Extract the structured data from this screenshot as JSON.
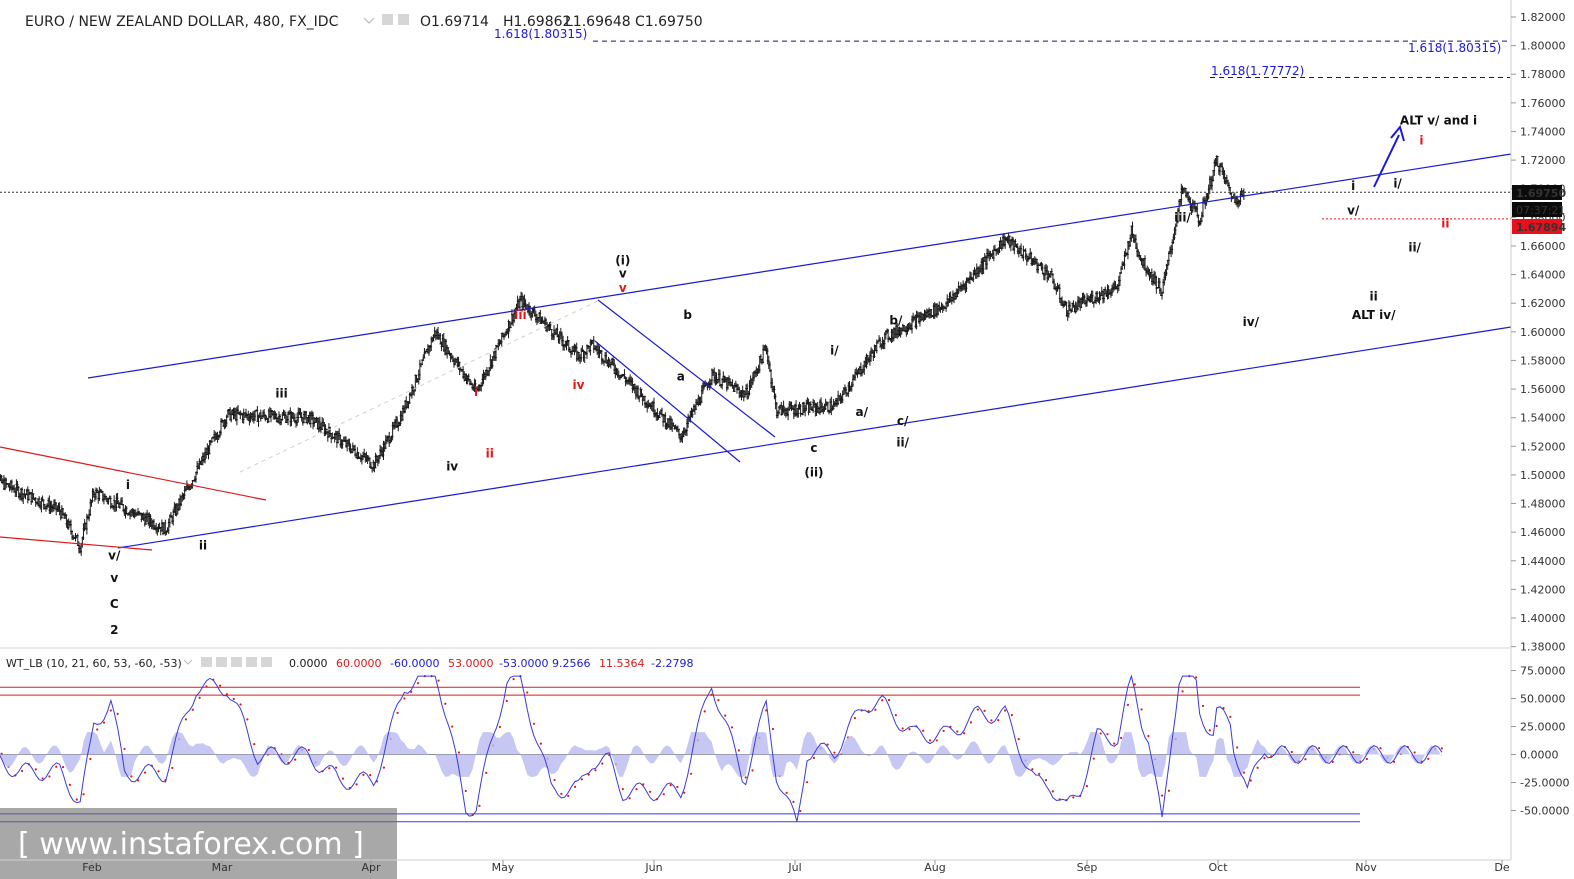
{
  "header": {
    "symbol": "EURO / NEW ZEALAND DOLLAR, 480, FX_IDC",
    "open": "O1.69714",
    "high": "H1.69862",
    "low": "L1.69648",
    "close": "C1.69750"
  },
  "price_axis": {
    "ticks": [
      "1.82000",
      "1.80000",
      "1.78000",
      "1.76000",
      "1.74000",
      "1.72000",
      "1.70000",
      "1.68000",
      "1.66000",
      "1.64000",
      "1.62000",
      "1.60000",
      "1.58000",
      "1.56000",
      "1.54000",
      "1.52000",
      "1.50000",
      "1.48000",
      "1.46000",
      "1.44000",
      "1.42000",
      "1.40000",
      "1.38000"
    ],
    "last_price": "1.69750",
    "countdown": "07:37:21",
    "support_price": "1.67894"
  },
  "time_axis": {
    "labels": [
      "Feb",
      "Mar",
      "Apr",
      "May",
      "Jun",
      "Jul",
      "Aug",
      "Sep",
      "Oct",
      "Nov",
      "De"
    ]
  },
  "fib_labels": {
    "left": "1.618(1.80315)",
    "right": "1.618(1.80315)",
    "mid": "1.618(1.77772)"
  },
  "wave_labels": [
    {
      "text": "v/",
      "price": 1.441,
      "day": 37,
      "color": "black"
    },
    {
      "text": "v",
      "price": 1.425,
      "day": 37,
      "color": "black"
    },
    {
      "text": "C",
      "price": 1.407,
      "day": 37,
      "color": "black"
    },
    {
      "text": "2",
      "price": 1.389,
      "day": 37,
      "color": "black"
    },
    {
      "text": "i",
      "price": 1.49,
      "day": 41,
      "color": "black"
    },
    {
      "text": "ii",
      "price": 1.448,
      "day": 63,
      "color": "black"
    },
    {
      "text": "iii",
      "price": 1.554,
      "day": 86,
      "color": "black"
    },
    {
      "text": "iv",
      "price": 1.503,
      "day": 136,
      "color": "black"
    },
    {
      "text": "i",
      "price": 1.555,
      "day": 143,
      "color": "red"
    },
    {
      "text": "ii",
      "price": 1.512,
      "day": 147,
      "color": "red"
    },
    {
      "text": "iii",
      "price": 1.609,
      "day": 156,
      "color": "red"
    },
    {
      "text": "iv",
      "price": 1.56,
      "day": 173,
      "color": "red"
    },
    {
      "text": "(i)",
      "price": 1.647,
      "day": 186,
      "color": "black"
    },
    {
      "text": "v",
      "price": 1.638,
      "day": 186,
      "color": "black"
    },
    {
      "text": "v",
      "price": 1.628,
      "day": 186,
      "color": "red"
    },
    {
      "text": "b",
      "price": 1.609,
      "day": 205,
      "color": "black"
    },
    {
      "text": "a",
      "price": 1.566,
      "day": 203,
      "color": "black"
    },
    {
      "text": "c",
      "price": 1.516,
      "day": 242,
      "color": "black"
    },
    {
      "text": "(ii)",
      "price": 1.499,
      "day": 242,
      "color": "black"
    },
    {
      "text": "i/",
      "price": 1.584,
      "day": 248,
      "color": "black"
    },
    {
      "text": "a/",
      "price": 1.541,
      "day": 256,
      "color": "black"
    },
    {
      "text": "b/",
      "price": 1.605,
      "day": 266,
      "color": "black"
    },
    {
      "text": "c/",
      "price": 1.535,
      "day": 268,
      "color": "black"
    },
    {
      "text": "ii/",
      "price": 1.52,
      "day": 268,
      "color": "black"
    },
    {
      "text": "iii/",
      "price": 1.677,
      "day": 350,
      "color": "black"
    },
    {
      "text": "iv/",
      "price": 1.604,
      "day": 370,
      "color": "black"
    },
    {
      "text": "i",
      "price": 1.699,
      "day": 400,
      "color": "black"
    },
    {
      "text": "v/",
      "price": 1.682,
      "day": 400,
      "color": "black"
    },
    {
      "text": "ii",
      "price": 1.622,
      "day": 406,
      "color": "black"
    },
    {
      "text": "ALT iv/",
      "price": 1.609,
      "day": 406,
      "color": "black"
    },
    {
      "text": "i/",
      "price": 1.701,
      "day": 413,
      "color": "black"
    },
    {
      "text": "ii/",
      "price": 1.656,
      "day": 418,
      "color": "black"
    },
    {
      "text": "ALT v/ and i",
      "price": 1.745,
      "day": 425,
      "color": "black"
    },
    {
      "text": "i",
      "price": 1.731,
      "day": 420,
      "color": "red"
    },
    {
      "text": "ii",
      "price": 1.673,
      "day": 427,
      "color": "red"
    }
  ],
  "indicator": {
    "title": "WT_LB (10, 21, 60, 53, -60, -53)",
    "values": [
      {
        "text": "0.0000",
        "color": "#1a1a1a"
      },
      {
        "text": "60.0000",
        "color": "#e01818"
      },
      {
        "text": "-60.0000",
        "color": "#1a1ad6"
      },
      {
        "text": "53.0000",
        "color": "#e01818"
      },
      {
        "text": "-53.0000",
        "color": "#1a1ad6"
      },
      {
        "text": "9.2566",
        "color": "#1a1ad6"
      },
      {
        "text": "11.5364",
        "color": "#e01818"
      },
      {
        "text": "-2.2798",
        "color": "#1a1ad6"
      }
    ],
    "ticks": [
      "75.0000",
      "50.0000",
      "25.0000",
      "0.0000",
      "-25.0000",
      "-50.0000"
    ],
    "levels": {
      "upper": [
        60,
        53
      ],
      "lower": [
        -53,
        -60
      ]
    }
  },
  "watermark": "[ www.instaforex.com ]",
  "colors": {
    "channel": "#1a1ad6",
    "red_line": "#e01818",
    "bars": "#1a1a1a",
    "histogram": "#b9b9f1",
    "wt1": "#3a3adf",
    "wt2": "#e01818"
  },
  "chart_data": {
    "type": "ohlc-bars",
    "timeframe": "480",
    "price_ylim": [
      1.38,
      1.82
    ],
    "indicator_ylim": [
      -75,
      75
    ],
    "series": [
      {
        "name": "EURO / NEW ZEALAND DOLLAR",
        "points": [
          {
            "date": "2017-01-01",
            "price": 1.499
          },
          {
            "date": "2017-01-22",
            "price": 1.475
          },
          {
            "date": "2017-01-28",
            "price": 1.45
          },
          {
            "date": "2017-02-01",
            "price": 1.488
          },
          {
            "date": "2017-02-22",
            "price": 1.462
          },
          {
            "date": "2017-03-12",
            "price": 1.542
          },
          {
            "date": "2017-04-05",
            "price": 1.54
          },
          {
            "date": "2017-04-24",
            "price": 1.507
          },
          {
            "date": "2017-05-02",
            "price": 1.541
          },
          {
            "date": "2017-05-12",
            "price": 1.6
          },
          {
            "date": "2017-05-24",
            "price": 1.558
          },
          {
            "date": "2017-06-06",
            "price": 1.622
          },
          {
            "date": "2017-06-23",
            "price": 1.583
          },
          {
            "date": "2017-06-27",
            "price": 1.591
          },
          {
            "date": "2017-07-23",
            "price": 1.527
          },
          {
            "date": "2017-08-01",
            "price": 1.57
          },
          {
            "date": "2017-08-11",
            "price": 1.556
          },
          {
            "date": "2017-08-17",
            "price": 1.589
          },
          {
            "date": "2017-08-20",
            "price": 1.545
          },
          {
            "date": "2017-09-06",
            "price": 1.548
          },
          {
            "date": "2017-09-20",
            "price": 1.595
          },
          {
            "date": "2017-10-09",
            "price": 1.62
          },
          {
            "date": "2017-10-26",
            "price": 1.665
          },
          {
            "date": "2017-11-08",
            "price": 1.64
          },
          {
            "date": "2017-11-13",
            "price": 1.615
          },
          {
            "date": "2017-11-28",
            "price": 1.632
          },
          {
            "date": "2017-12-02",
            "price": 1.67
          },
          {
            "date": "2017-12-05",
            "price": 1.65
          },
          {
            "date": "2017-12-11",
            "price": 1.628
          },
          {
            "date": "2017-12-17",
            "price": 1.7
          },
          {
            "date": "2017-12-22",
            "price": 1.678
          },
          {
            "date": "2017-12-27",
            "price": 1.72
          },
          {
            "date": "2018-01-01",
            "price": 1.692
          },
          {
            "date": "2018-01-04",
            "price": 1.697
          }
        ]
      }
    ]
  }
}
